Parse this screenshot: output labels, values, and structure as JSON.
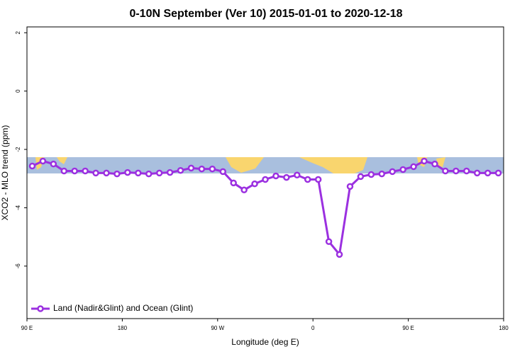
{
  "chart_data": {
    "type": "line",
    "title": "0-10N September (Ver 10)   2015-01-01 to 2020-12-18",
    "x_label": "Longitude (deg E)",
    "y_label": "XCO2 - MLO trend (ppm)",
    "xlim": [
      90,
      540
    ],
    "ylim": [
      -7.8,
      2.2
    ],
    "xticks": [
      {
        "value": 90,
        "label": "90 E"
      },
      {
        "value": 180,
        "label": "180"
      },
      {
        "value": 270,
        "label": "90 W"
      },
      {
        "value": 360,
        "label": "0"
      },
      {
        "value": 450,
        "label": "90 E"
      },
      {
        "value": 540,
        "label": "180"
      }
    ],
    "yticks": [
      -6,
      -4,
      -2,
      0,
      2
    ],
    "legend": "bottomleft",
    "x": [
      95,
      105,
      115,
      125,
      135,
      145,
      155,
      165,
      175,
      185,
      195,
      205,
      215,
      225,
      235,
      245,
      255,
      265,
      275,
      285,
      295,
      305,
      315,
      325,
      335,
      345,
      355,
      365,
      375,
      385,
      395,
      405,
      415,
      425,
      435,
      445,
      455,
      465,
      475,
      485,
      495,
      505,
      515,
      525,
      535
    ],
    "series": [
      {
        "name": "Land (Nadir&Glint) and Ocean (Glint)",
        "color": "#9b30e0",
        "values": [
          -2.57,
          -2.4,
          -2.5,
          -2.74,
          -2.74,
          -2.74,
          -2.81,
          -2.81,
          -2.84,
          -2.79,
          -2.81,
          -2.84,
          -2.81,
          -2.79,
          -2.72,
          -2.64,
          -2.67,
          -2.67,
          -2.76,
          -3.15,
          -3.39,
          -3.18,
          -3.03,
          -2.91,
          -2.96,
          -2.88,
          -3.03,
          -3.03,
          -5.16,
          -5.6,
          -3.27,
          -2.93,
          -2.86,
          -2.84,
          -2.76,
          -2.69,
          -2.59,
          -2.4,
          -2.5,
          -2.74,
          -2.74,
          -2.74,
          -2.81,
          -2.81,
          -2.81
        ]
      }
    ]
  }
}
